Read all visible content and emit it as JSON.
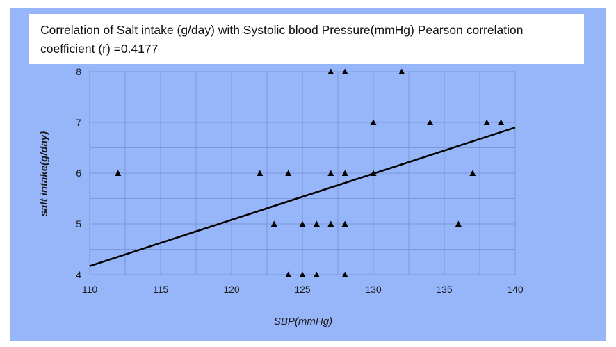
{
  "chart_data": {
    "type": "scatter",
    "title": "Correlation of Salt intake (g/day) with Systolic blood Pressure(mmHg) Pearson correlation coefficient (r) =0.4177",
    "xlabel": "SBP(mmHg)",
    "ylabel": "salt intake(g/day)",
    "xlim": [
      110,
      140
    ],
    "ylim": [
      4,
      8
    ],
    "x_ticks": [
      "110",
      "115",
      "120",
      "125",
      "130",
      "135",
      "140"
    ],
    "y_ticks": [
      "4",
      "5",
      "6",
      "7",
      "8"
    ],
    "grid": true,
    "marker": "triangle",
    "points": [
      {
        "x": 112,
        "y": 6
      },
      {
        "x": 122,
        "y": 6
      },
      {
        "x": 123,
        "y": 5
      },
      {
        "x": 124,
        "y": 4
      },
      {
        "x": 124,
        "y": 6
      },
      {
        "x": 125,
        "y": 4
      },
      {
        "x": 125,
        "y": 5
      },
      {
        "x": 126,
        "y": 4
      },
      {
        "x": 126,
        "y": 5
      },
      {
        "x": 127,
        "y": 5
      },
      {
        "x": 127,
        "y": 6
      },
      {
        "x": 127,
        "y": 8
      },
      {
        "x": 128,
        "y": 4
      },
      {
        "x": 128,
        "y": 5
      },
      {
        "x": 128,
        "y": 6
      },
      {
        "x": 128,
        "y": 8
      },
      {
        "x": 130,
        "y": 6
      },
      {
        "x": 130,
        "y": 7
      },
      {
        "x": 132,
        "y": 8
      },
      {
        "x": 134,
        "y": 7
      },
      {
        "x": 136,
        "y": 5
      },
      {
        "x": 137,
        "y": 6
      },
      {
        "x": 138,
        "y": 7
      },
      {
        "x": 139,
        "y": 7
      }
    ],
    "trendline": {
      "x": [
        110,
        140
      ],
      "y": [
        4.17,
        6.9
      ]
    },
    "colors": {
      "background": "#97b5f9",
      "plot_area": "#97b5f9",
      "grid": "#7b97d9",
      "marker": "#000000",
      "trendline": "#000000"
    }
  }
}
